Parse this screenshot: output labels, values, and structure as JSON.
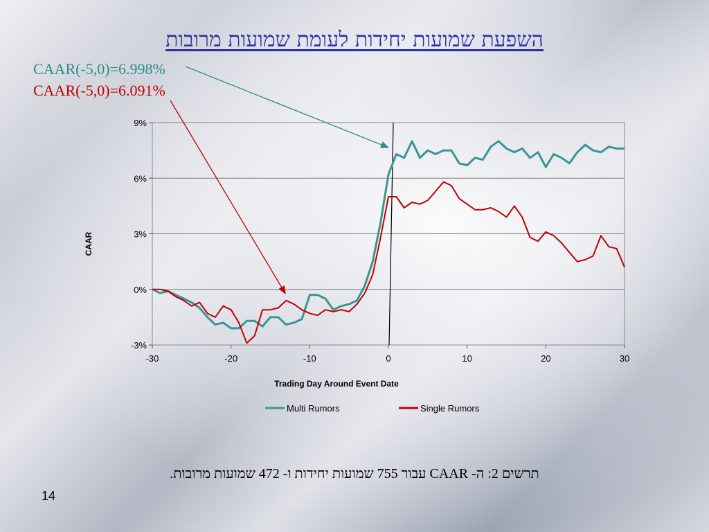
{
  "slide": {
    "title": "השפעת שמועות יחידות לעומת שמועות מרובות",
    "annotations": [
      {
        "text": "CAAR(-5,0)=6.998%",
        "color": "#2e8b8b",
        "target_series": "Multi Rumors",
        "target_x": 0
      },
      {
        "text": "CAAR(-5,0)=6.091%",
        "color": "#c00000",
        "target_series": "Single Rumors",
        "target_x": -13
      }
    ],
    "caption": "תרשים 2: ה- CAAR עבור 755 שמועות יחידות ו- 472 שמועות מרובות.",
    "page_number": "14"
  },
  "chart_data": {
    "type": "line",
    "xlabel": "Trading Day Around Event Date",
    "ylabel": "CAAR",
    "xlim": [
      -30,
      30
    ],
    "ylim": [
      -3,
      9
    ],
    "xticks": [
      -30,
      -20,
      -10,
      0,
      10,
      20,
      30
    ],
    "yticks": [
      -3,
      0,
      3,
      6,
      9
    ],
    "ytick_format": "percent",
    "grid": "horizontal",
    "event_line_x": 0,
    "legend": {
      "position": "bottom"
    },
    "series": [
      {
        "name": "Multi Rumors",
        "color": "#3a9494",
        "x": [
          -30,
          -29,
          -28,
          -27,
          -26,
          -25,
          -24,
          -23,
          -22,
          -21,
          -20,
          -19,
          -18,
          -17,
          -16,
          -15,
          -14,
          -13,
          -12,
          -11,
          -10,
          -9,
          -8,
          -7,
          -6,
          -5,
          -4,
          -3,
          -2,
          -1,
          0,
          1,
          2,
          3,
          4,
          5,
          6,
          7,
          8,
          9,
          10,
          11,
          12,
          13,
          14,
          15,
          16,
          17,
          18,
          19,
          20,
          21,
          22,
          23,
          24,
          25,
          26,
          27,
          28,
          29,
          30
        ],
        "y": [
          0.0,
          -0.2,
          -0.1,
          -0.3,
          -0.5,
          -0.7,
          -1.0,
          -1.5,
          -1.9,
          -1.8,
          -2.1,
          -2.1,
          -1.7,
          -1.7,
          -2.0,
          -1.5,
          -1.5,
          -1.9,
          -1.8,
          -1.6,
          -0.3,
          -0.3,
          -0.5,
          -1.1,
          -0.9,
          -0.8,
          -0.6,
          0.2,
          1.5,
          3.6,
          6.2,
          7.3,
          7.1,
          8.0,
          7.1,
          7.5,
          7.3,
          7.5,
          7.5,
          6.8,
          6.7,
          7.1,
          7.0,
          7.7,
          8.0,
          7.6,
          7.4,
          7.6,
          7.1,
          7.4,
          6.6,
          7.3,
          7.1,
          6.8,
          7.4,
          7.8,
          7.5,
          7.4,
          7.7,
          7.6,
          7.6
        ]
      },
      {
        "name": "Single Rumors",
        "color": "#c00000",
        "x": [
          -30,
          -29,
          -28,
          -27,
          -26,
          -25,
          -24,
          -23,
          -22,
          -21,
          -20,
          -19,
          -18,
          -17,
          -16,
          -15,
          -14,
          -13,
          -12,
          -11,
          -10,
          -9,
          -8,
          -7,
          -6,
          -5,
          -4,
          -3,
          -2,
          -1,
          0,
          1,
          2,
          3,
          4,
          5,
          6,
          7,
          8,
          9,
          10,
          11,
          12,
          13,
          14,
          15,
          16,
          17,
          18,
          19,
          20,
          21,
          22,
          23,
          24,
          25,
          26,
          27,
          28,
          29,
          30
        ],
        "y": [
          0.0,
          0.0,
          -0.1,
          -0.4,
          -0.6,
          -0.9,
          -0.7,
          -1.3,
          -1.5,
          -0.9,
          -1.1,
          -1.8,
          -2.9,
          -2.5,
          -1.1,
          -1.1,
          -1.0,
          -0.6,
          -0.8,
          -1.1,
          -1.3,
          -1.4,
          -1.1,
          -1.2,
          -1.1,
          -1.2,
          -0.8,
          -0.2,
          0.8,
          2.8,
          5.0,
          5.0,
          4.4,
          4.7,
          4.6,
          4.8,
          5.3,
          5.8,
          5.6,
          4.9,
          4.6,
          4.3,
          4.3,
          4.4,
          4.2,
          3.9,
          4.5,
          3.9,
          2.8,
          2.6,
          3.1,
          2.9,
          2.5,
          2.0,
          1.5,
          1.6,
          1.8,
          2.9,
          2.3,
          2.2,
          1.2
        ]
      }
    ]
  }
}
